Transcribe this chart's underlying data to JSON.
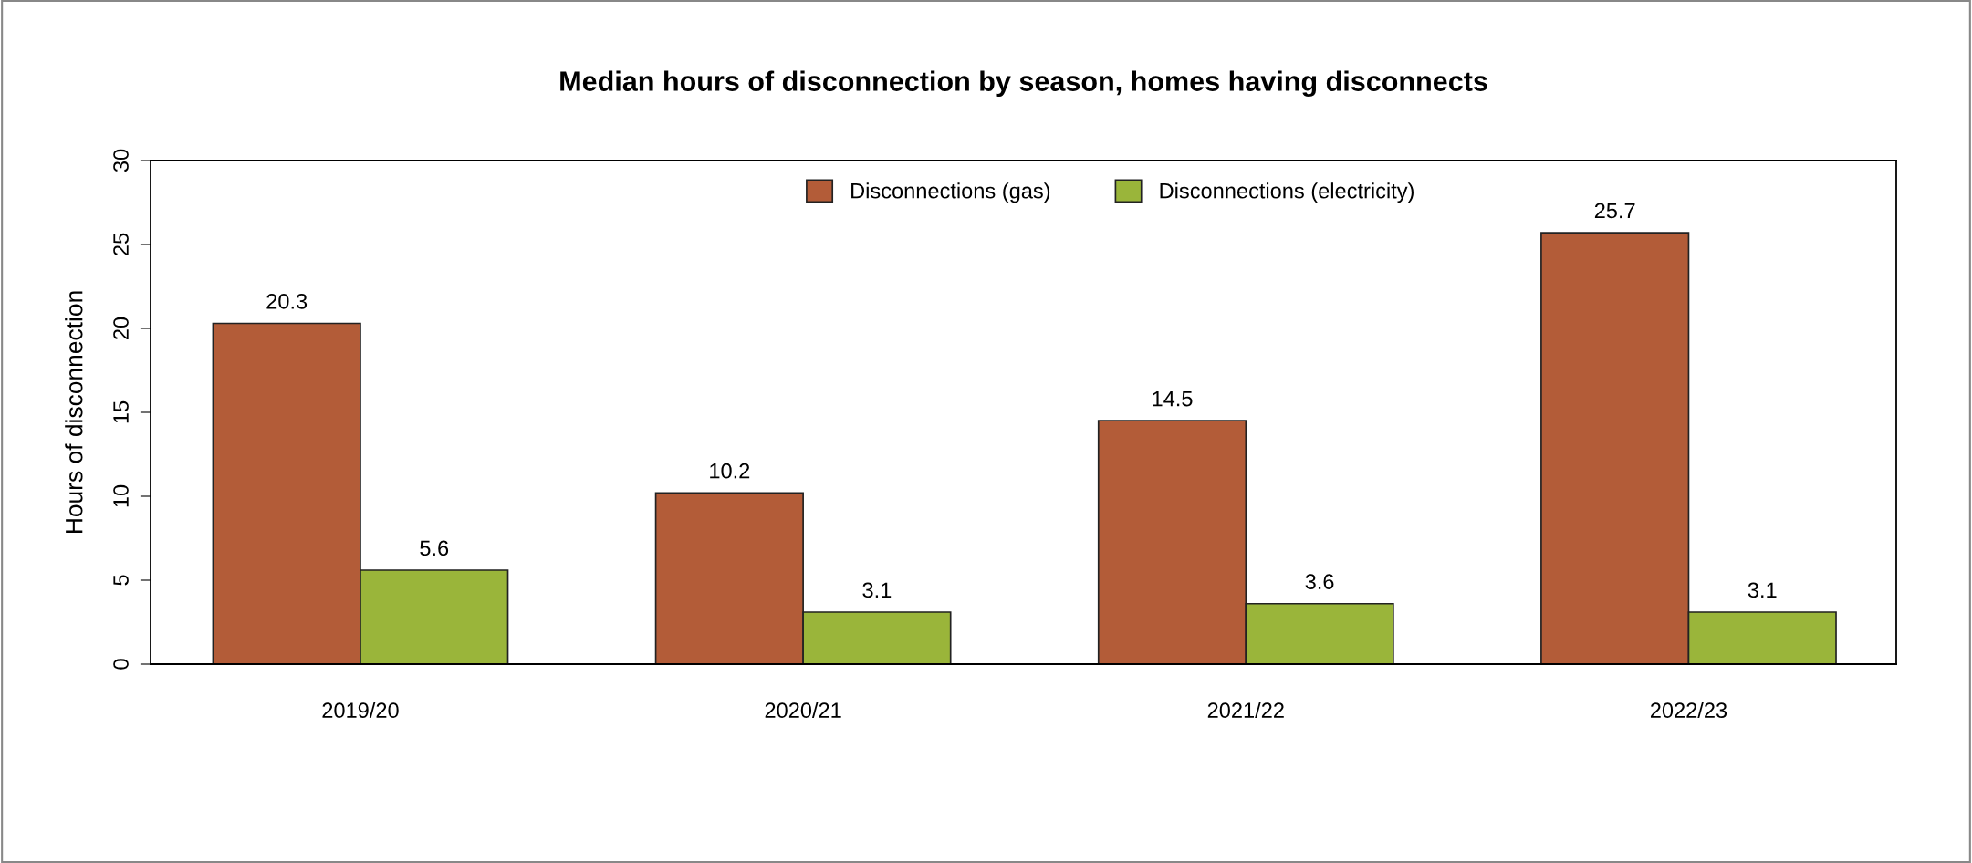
{
  "chart_data": {
    "type": "bar",
    "title": "Median hours of disconnection by season, homes having disconnects",
    "ylabel": "Hours of disconnection",
    "categories": [
      "2019/20",
      "2020/21",
      "2021/22",
      "2022/23"
    ],
    "series": [
      {
        "name": "Disconnections (gas)",
        "color": "#b35c38",
        "values": [
          20.3,
          10.2,
          14.5,
          25.7
        ]
      },
      {
        "name": "Disconnections (electricity)",
        "color": "#9ab53a",
        "values": [
          5.6,
          3.1,
          3.6,
          3.1
        ]
      }
    ],
    "ylim": [
      0,
      30
    ],
    "yticks": [
      0,
      5,
      10,
      15,
      20,
      25,
      30
    ],
    "grid": false,
    "legend": "top",
    "data_labels": true
  }
}
